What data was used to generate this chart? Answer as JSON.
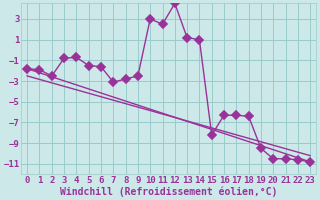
{
  "background_color": "#cce8e8",
  "grid_color": "#99cccc",
  "line_color": "#993399",
  "title": "",
  "xlabel": "Windchill (Refroidissement éolien,°C)",
  "ylabel": "",
  "xlim": [
    -0.5,
    23.5
  ],
  "ylim": [
    -12,
    4.5
  ],
  "yticks": [
    3,
    1,
    -1,
    -3,
    -5,
    -7,
    -9,
    -11
  ],
  "xticks": [
    0,
    1,
    2,
    3,
    4,
    5,
    6,
    7,
    8,
    9,
    10,
    11,
    12,
    13,
    14,
    15,
    16,
    17,
    18,
    19,
    20,
    21,
    22,
    23
  ],
  "series1_x": [
    0,
    1,
    2,
    3,
    4,
    5,
    6,
    7,
    8,
    9,
    10,
    11,
    12,
    13,
    14,
    15,
    16,
    17,
    18,
    19,
    20,
    21,
    22,
    23
  ],
  "series1_y": [
    -1.8,
    -1.9,
    -2.5,
    -0.8,
    -0.7,
    -1.5,
    -1.6,
    -3.1,
    -2.8,
    -2.5,
    3.0,
    2.5,
    4.5,
    1.2,
    1.0,
    -8.2,
    -6.3,
    -6.3,
    -6.4,
    -9.5,
    -10.5,
    -10.5,
    -10.6,
    -10.8
  ],
  "trend1_x": [
    0,
    23
  ],
  "trend1_y": [
    -1.8,
    -10.8
  ],
  "trend2_x": [
    0,
    23
  ],
  "trend2_y": [
    -2.5,
    -10.2
  ],
  "font_family": "monospace",
  "xlabel_fontsize": 7,
  "tick_fontsize": 6.5,
  "linewidth": 1.0,
  "markersize": 4,
  "markeredgewidth": 1.2
}
